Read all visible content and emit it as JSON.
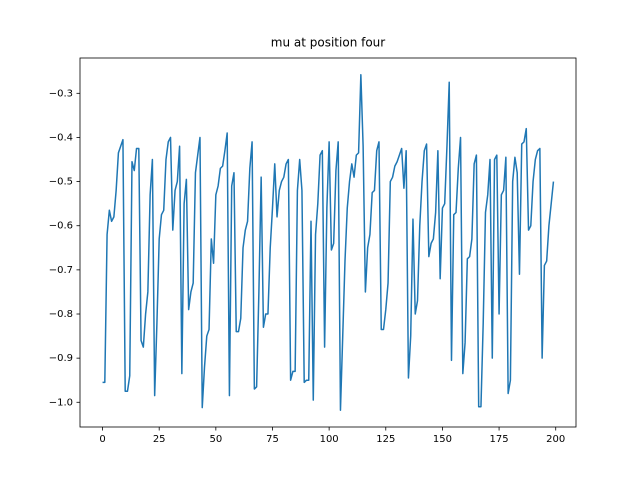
{
  "chart_data": {
    "type": "line",
    "title": "mu at position four",
    "x": [
      0,
      1,
      2,
      3,
      4,
      5,
      6,
      7,
      8,
      9,
      10,
      11,
      12,
      13,
      14,
      15,
      16,
      17,
      18,
      19,
      20,
      21,
      22,
      23,
      24,
      25,
      26,
      27,
      28,
      29,
      30,
      31,
      32,
      33,
      34,
      35,
      36,
      37,
      38,
      39,
      40,
      41,
      42,
      43,
      44,
      45,
      46,
      47,
      48,
      49,
      50,
      51,
      52,
      53,
      54,
      55,
      56,
      57,
      58,
      59,
      60,
      61,
      62,
      63,
      64,
      65,
      66,
      67,
      68,
      69,
      70,
      71,
      72,
      73,
      74,
      75,
      76,
      77,
      78,
      79,
      80,
      81,
      82,
      83,
      84,
      85,
      86,
      87,
      88,
      89,
      90,
      91,
      92,
      93,
      94,
      95,
      96,
      97,
      98,
      99,
      100,
      101,
      102,
      103,
      104,
      105,
      106,
      107,
      108,
      109,
      110,
      111,
      112,
      113,
      114,
      115,
      116,
      117,
      118,
      119,
      120,
      121,
      122,
      123,
      124,
      125,
      126,
      127,
      128,
      129,
      130,
      131,
      132,
      133,
      134,
      135,
      136,
      137,
      138,
      139,
      140,
      141,
      142,
      143,
      144,
      145,
      146,
      147,
      148,
      149,
      150,
      151,
      152,
      153,
      154,
      155,
      156,
      157,
      158,
      159,
      160,
      161,
      162,
      163,
      164,
      165,
      166,
      167,
      168,
      169,
      170,
      171,
      172,
      173,
      174,
      175,
      176,
      177,
      178,
      179,
      180,
      181,
      182,
      183,
      184,
      185,
      186,
      187,
      188,
      189,
      190,
      191,
      192,
      193,
      194,
      195,
      196,
      197,
      198,
      199
    ],
    "series": [
      {
        "color": "#1f77b4",
        "values": [
          -0.955,
          -0.955,
          -0.62,
          -0.565,
          -0.59,
          -0.58,
          -0.52,
          -0.435,
          -0.42,
          -0.405,
          -0.975,
          -0.975,
          -0.94,
          -0.455,
          -0.475,
          -0.425,
          -0.425,
          -0.86,
          -0.875,
          -0.8,
          -0.75,
          -0.53,
          -0.45,
          -0.985,
          -0.82,
          -0.63,
          -0.575,
          -0.565,
          -0.45,
          -0.41,
          -0.4,
          -0.61,
          -0.52,
          -0.5,
          -0.42,
          -0.935,
          -0.55,
          -0.495,
          -0.79,
          -0.75,
          -0.73,
          -0.48,
          -0.44,
          -0.4,
          -1.012,
          -0.92,
          -0.85,
          -0.835,
          -0.63,
          -0.685,
          -0.53,
          -0.51,
          -0.47,
          -0.465,
          -0.43,
          -0.39,
          -0.985,
          -0.51,
          -0.48,
          -0.84,
          -0.84,
          -0.81,
          -0.65,
          -0.61,
          -0.59,
          -0.47,
          -0.41,
          -0.97,
          -0.965,
          -0.75,
          -0.49,
          -0.83,
          -0.8,
          -0.8,
          -0.65,
          -0.56,
          -0.46,
          -0.58,
          -0.52,
          -0.5,
          -0.49,
          -0.46,
          -0.45,
          -0.95,
          -0.93,
          -0.93,
          -0.52,
          -0.45,
          -0.52,
          -0.955,
          -0.95,
          -0.95,
          -0.59,
          -0.995,
          -0.62,
          -0.55,
          -0.44,
          -0.43,
          -0.875,
          -0.56,
          -0.41,
          -0.655,
          -0.64,
          -0.475,
          -0.41,
          -1.018,
          -0.85,
          -0.68,
          -0.56,
          -0.5,
          -0.46,
          -0.49,
          -0.44,
          -0.435,
          -0.258,
          -0.42,
          -0.75,
          -0.65,
          -0.62,
          -0.525,
          -0.52,
          -0.43,
          -0.41,
          -0.835,
          -0.835,
          -0.79,
          -0.73,
          -0.5,
          -0.49,
          -0.465,
          -0.455,
          -0.44,
          -0.425,
          -0.515,
          -0.43,
          -0.945,
          -0.85,
          -0.585,
          -0.8,
          -0.77,
          -0.6,
          -0.5,
          -0.43,
          -0.415,
          -0.67,
          -0.64,
          -0.63,
          -0.57,
          -0.43,
          -0.72,
          -0.56,
          -0.55,
          -0.42,
          -0.275,
          -0.905,
          -0.575,
          -0.57,
          -0.47,
          -0.4,
          -0.935,
          -0.865,
          -0.675,
          -0.67,
          -0.63,
          -0.46,
          -0.44,
          -1.01,
          -1.01,
          -0.82,
          -0.57,
          -0.53,
          -0.45,
          -0.9,
          -0.45,
          -0.44,
          -0.8,
          -0.53,
          -0.52,
          -0.445,
          -0.98,
          -0.95,
          -0.5,
          -0.445,
          -0.48,
          -0.71,
          -0.415,
          -0.41,
          -0.38,
          -0.61,
          -0.6,
          -0.5,
          -0.45,
          -0.43,
          -0.425,
          -0.9,
          -0.69,
          -0.68,
          -0.6,
          -0.55,
          -0.5
        ]
      }
    ],
    "xlim": [
      -9.95,
      208.95
    ],
    "xticks": [
      0,
      25,
      50,
      75,
      100,
      125,
      150,
      175,
      200
    ],
    "ylim": [
      -1.056,
      -0.22
    ],
    "yticks": [
      {
        "value": -1.0,
        "label": "−1.0"
      },
      {
        "value": -0.9,
        "label": "−0.9"
      },
      {
        "value": -0.8,
        "label": "−0.8"
      },
      {
        "value": -0.7,
        "label": "−0.7"
      },
      {
        "value": -0.6,
        "label": "−0.6"
      },
      {
        "value": -0.5,
        "label": "−0.5"
      },
      {
        "value": -0.4,
        "label": "−0.4"
      },
      {
        "value": -0.3,
        "label": "−0.3"
      }
    ],
    "grid": false
  }
}
